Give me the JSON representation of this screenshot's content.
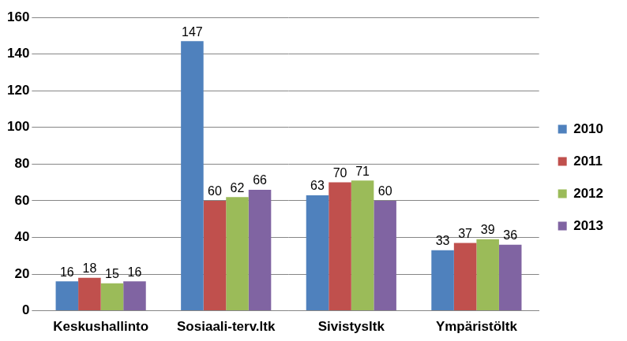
{
  "chart_data": {
    "type": "bar",
    "categories": [
      "Keskushallinto",
      "Sosiaali-terv.ltk",
      "Sivistysltk",
      "Ympäristöltk"
    ],
    "series": [
      {
        "name": "2010",
        "color": "#4f81bd",
        "values": [
          16,
          147,
          63,
          33
        ]
      },
      {
        "name": "2011",
        "color": "#c0504d",
        "values": [
          18,
          60,
          70,
          37
        ]
      },
      {
        "name": "2012",
        "color": "#9bbb59",
        "values": [
          15,
          62,
          71,
          39
        ]
      },
      {
        "name": "2013",
        "color": "#8064a2",
        "values": [
          16,
          66,
          60,
          36
        ]
      }
    ],
    "ylim": [
      0,
      160
    ],
    "yticks": [
      0,
      20,
      40,
      60,
      80,
      100,
      120,
      140,
      160
    ],
    "grid": true,
    "legend": "right",
    "data_labels": true
  }
}
